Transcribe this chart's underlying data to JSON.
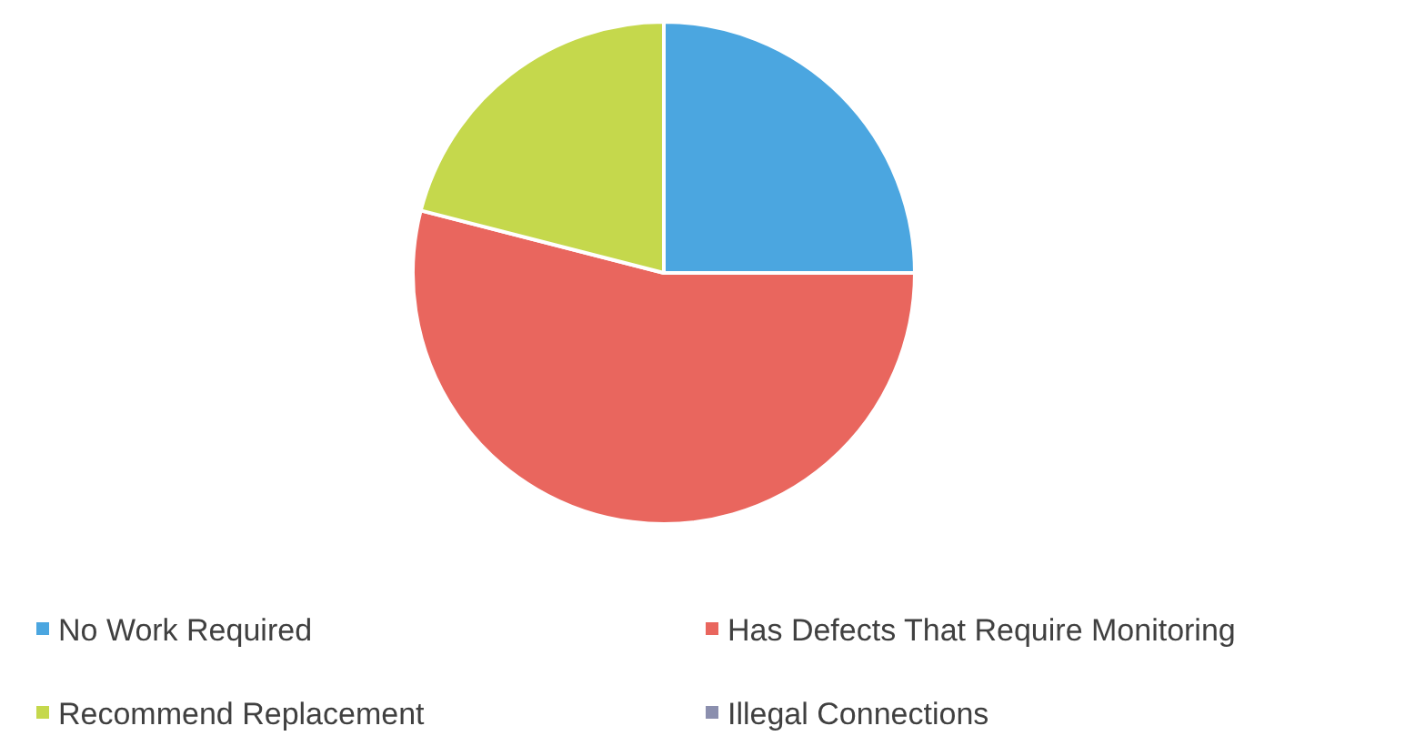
{
  "chart_data": {
    "type": "pie",
    "categories": [
      "No Work Required",
      "Has Defects That Require Monitoring",
      "Recommend Replacement",
      "Illegal Connections"
    ],
    "values": [
      25,
      54,
      21,
      0
    ],
    "colors": [
      "#4ba6e0",
      "#e9665e",
      "#c5d84c",
      "#8b8fae"
    ],
    "legend": "bottom"
  }
}
